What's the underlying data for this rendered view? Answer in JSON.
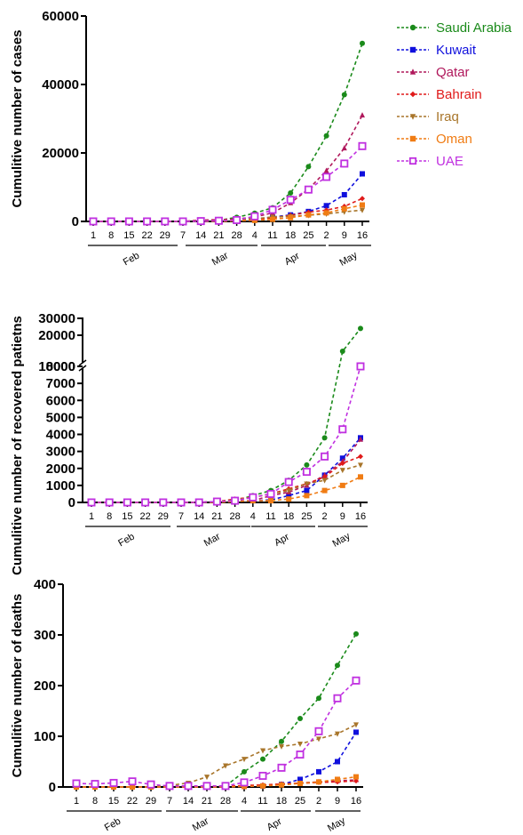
{
  "legend": [
    {
      "name": "Saudi Arabia",
      "color": "#1a8a1a",
      "marker": "circle"
    },
    {
      "name": "Kuwait",
      "color": "#1010dd",
      "marker": "square"
    },
    {
      "name": "Qatar",
      "color": "#b0185c",
      "marker": "triangle"
    },
    {
      "name": "Bahrain",
      "color": "#e01a1a",
      "marker": "diamond"
    },
    {
      "name": "Iraq",
      "color": "#a8752a",
      "marker": "triangle-down"
    },
    {
      "name": "Oman",
      "color": "#f07c14",
      "marker": "square-solid"
    },
    {
      "name": "UAE",
      "color": "#c030e0",
      "marker": "square-open"
    }
  ],
  "x_labels": [
    "1",
    "8",
    "15",
    "22",
    "29",
    "7",
    "14",
    "21",
    "28",
    "4",
    "11",
    "18",
    "25",
    "2",
    "9",
    "16"
  ],
  "months": [
    "Feb",
    "Mar",
    "Apr",
    "May"
  ],
  "chart_data": [
    {
      "type": "line",
      "ylabel": "Cumulitive number of cases",
      "ylim": [
        0,
        60000
      ],
      "yticks": [
        "0",
        "20000",
        "40000",
        "60000"
      ],
      "categories": [
        "1",
        "8",
        "15",
        "22",
        "29",
        "7",
        "14",
        "21",
        "28",
        "4",
        "11",
        "18",
        "25",
        "2",
        "9",
        "16"
      ],
      "series": [
        {
          "name": "Saudi Arabia",
          "values": [
            0,
            0,
            0,
            0,
            0,
            0,
            100,
            300,
            1200,
            2400,
            4000,
            8300,
            16000,
            25000,
            37000,
            52000
          ]
        },
        {
          "name": "Kuwait",
          "values": [
            0,
            0,
            0,
            0,
            0,
            0,
            100,
            200,
            300,
            500,
            1300,
            1900,
            2900,
            4600,
            7800,
            13900
          ]
        },
        {
          "name": "Qatar",
          "values": [
            0,
            0,
            0,
            0,
            0,
            0,
            400,
            500,
            700,
            1300,
            2500,
            5400,
            9400,
            14800,
            21400,
            31000
          ]
        },
        {
          "name": "Bahrain",
          "values": [
            0,
            0,
            0,
            0,
            0,
            0,
            200,
            300,
            500,
            700,
            1000,
            1800,
            2700,
            3300,
            4400,
            6700
          ]
        },
        {
          "name": "Iraq",
          "values": [
            0,
            0,
            0,
            0,
            0,
            0,
            100,
            200,
            500,
            800,
            1300,
            1500,
            1800,
            2200,
            2800,
            3300
          ]
        },
        {
          "name": "Oman",
          "values": [
            0,
            0,
            0,
            0,
            0,
            0,
            0,
            0,
            200,
            300,
            600,
            1100,
            1900,
            2500,
            3700,
            4800
          ]
        },
        {
          "name": "UAE",
          "values": [
            0,
            0,
            0,
            0,
            0,
            0,
            100,
            200,
            400,
            1500,
            3400,
            6300,
            9300,
            13000,
            16900,
            22000
          ]
        }
      ]
    },
    {
      "type": "line",
      "ylabel": "Cumulitive number of recovered patietns",
      "ylim": [
        0,
        30000
      ],
      "axis_break": [
        8000,
        10000
      ],
      "yticks": [
        "0",
        "1000",
        "2000",
        "3000",
        "4000",
        "5000",
        "6000",
        "7000",
        "8000",
        "10000",
        "20000",
        "30000"
      ],
      "categories": [
        "1",
        "8",
        "15",
        "22",
        "29",
        "7",
        "14",
        "21",
        "28",
        "4",
        "11",
        "18",
        "25",
        "2",
        "9",
        "16"
      ],
      "series": [
        {
          "name": "Saudi Arabia",
          "values": [
            0,
            0,
            0,
            0,
            0,
            0,
            0,
            50,
            100,
            400,
            700,
            1300,
            2200,
            3800,
            10500,
            24000
          ]
        },
        {
          "name": "Kuwait",
          "values": [
            0,
            0,
            0,
            0,
            0,
            0,
            0,
            50,
            80,
            100,
            150,
            400,
            700,
            1600,
            2600,
            3800
          ]
        },
        {
          "name": "Qatar",
          "values": [
            0,
            0,
            0,
            0,
            0,
            0,
            0,
            50,
            80,
            100,
            400,
            600,
            1000,
            1600,
            2400,
            3700
          ]
        },
        {
          "name": "Bahrain",
          "values": [
            0,
            0,
            0,
            0,
            0,
            0,
            0,
            50,
            200,
            300,
            500,
            800,
            1100,
            1500,
            2300,
            2700
          ]
        },
        {
          "name": "Iraq",
          "values": [
            0,
            0,
            0,
            0,
            0,
            0,
            0,
            50,
            150,
            300,
            500,
            700,
            1100,
            1300,
            1900,
            2200
          ]
        },
        {
          "name": "Oman",
          "values": [
            0,
            0,
            0,
            0,
            0,
            0,
            0,
            0,
            50,
            100,
            100,
            200,
            400,
            700,
            1000,
            1500
          ]
        },
        {
          "name": "UAE",
          "values": [
            0,
            0,
            0,
            0,
            0,
            0,
            0,
            50,
            100,
            300,
            500,
            1200,
            1800,
            2700,
            4300,
            8000
          ]
        }
      ]
    },
    {
      "type": "line",
      "ylabel": "Cumulitive number of deaths",
      "ylim": [
        0,
        400
      ],
      "yticks": [
        "0",
        "100",
        "200",
        "300",
        "400"
      ],
      "categories": [
        "1",
        "8",
        "15",
        "22",
        "29",
        "7",
        "14",
        "21",
        "28",
        "4",
        "11",
        "18",
        "25",
        "2",
        "9",
        "16"
      ],
      "series": [
        {
          "name": "Saudi Arabia",
          "values": [
            0,
            0,
            0,
            0,
            0,
            0,
            0,
            0,
            2,
            30,
            55,
            90,
            135,
            175,
            240,
            302
          ]
        },
        {
          "name": "Kuwait",
          "values": [
            0,
            0,
            0,
            0,
            0,
            0,
            0,
            0,
            0,
            1,
            2,
            5,
            15,
            30,
            50,
            108
          ]
        },
        {
          "name": "Qatar",
          "values": [
            0,
            0,
            0,
            0,
            0,
            0,
            0,
            0,
            0,
            2,
            3,
            5,
            8,
            10,
            12,
            14
          ]
        },
        {
          "name": "Bahrain",
          "values": [
            0,
            0,
            0,
            0,
            0,
            0,
            0,
            0,
            1,
            3,
            4,
            6,
            7,
            9,
            10,
            12
          ]
        },
        {
          "name": "Iraq",
          "values": [
            0,
            0,
            0,
            0,
            0,
            3,
            8,
            20,
            42,
            55,
            72,
            80,
            85,
            95,
            105,
            123
          ]
        },
        {
          "name": "Oman",
          "values": [
            0,
            0,
            0,
            0,
            0,
            0,
            0,
            0,
            0,
            1,
            2,
            4,
            7,
            10,
            15,
            20
          ]
        },
        {
          "name": "UAE",
          "values": [
            7,
            6,
            8,
            11,
            5,
            2,
            2,
            2,
            2,
            9,
            22,
            38,
            64,
            110,
            175,
            210
          ]
        }
      ]
    }
  ]
}
